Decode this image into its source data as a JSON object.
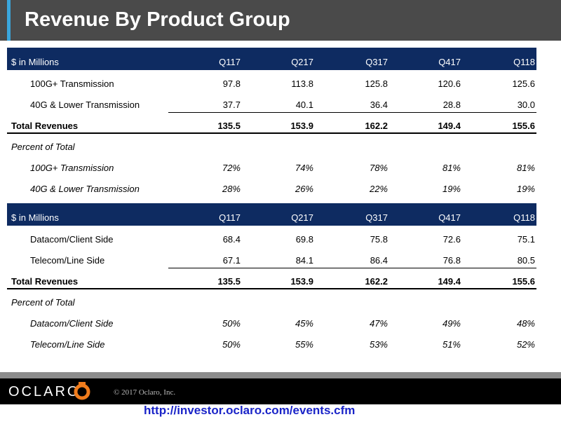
{
  "header": {
    "title": "Revenue By Product Group"
  },
  "tables": [
    {
      "header": [
        "$ in Millions",
        "Q117",
        "Q217",
        "Q317",
        "Q417",
        "Q118"
      ],
      "rows": [
        [
          "100G+ Transmission",
          "97.8",
          "113.8",
          "125.8",
          "120.6",
          "125.6"
        ],
        [
          "40G & Lower Transmission",
          "37.7",
          "40.1",
          "36.4",
          "28.8",
          "30.0"
        ]
      ],
      "total": [
        "Total Revenues",
        "135.5",
        "153.9",
        "162.2",
        "149.4",
        "155.6"
      ],
      "percent_title": "Percent of Total",
      "percent_rows": [
        [
          "100G+ Transmission",
          "72%",
          "74%",
          "78%",
          "81%",
          "81%"
        ],
        [
          "40G & Lower Transmission",
          "28%",
          "26%",
          "22%",
          "19%",
          "19%"
        ]
      ]
    },
    {
      "header": [
        "$ in Millions",
        "Q117",
        "Q217",
        "Q317",
        "Q417",
        "Q118"
      ],
      "rows": [
        [
          "Datacom/Client Side",
          "68.4",
          "69.8",
          "75.8",
          "72.6",
          "75.1"
        ],
        [
          "Telecom/Line Side",
          "67.1",
          "84.1",
          "86.4",
          "76.8",
          "80.5"
        ]
      ],
      "total": [
        "Total Revenues",
        "135.5",
        "153.9",
        "162.2",
        "149.4",
        "155.6"
      ],
      "percent_title": "Percent of Total",
      "percent_rows": [
        [
          "Datacom/Client Side",
          "50%",
          "45%",
          "47%",
          "49%",
          "48%"
        ],
        [
          "Telecom/Line Side",
          "50%",
          "55%",
          "53%",
          "51%",
          "52%"
        ]
      ]
    }
  ],
  "footer": {
    "logo": "OCLARO",
    "copyright": "© 2017 Oclaro, Inc.",
    "link": "http://investor.oclaro.com/events.cfm"
  }
}
